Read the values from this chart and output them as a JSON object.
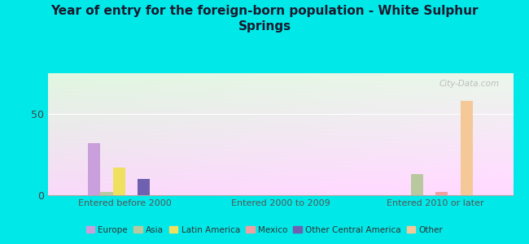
{
  "title": "Year of entry for the foreign-born population - White Sulphur\nSprings",
  "categories": [
    "Entered before 2000",
    "Entered 2000 to 2009",
    "Entered 2010 or later"
  ],
  "series": {
    "Europe": [
      32,
      0,
      0
    ],
    "Asia": [
      2,
      0,
      13
    ],
    "Latin America": [
      17,
      0,
      0
    ],
    "Mexico": [
      0,
      0,
      2
    ],
    "Other Central America": [
      10,
      0,
      0
    ],
    "Other": [
      0,
      0,
      58
    ]
  },
  "colors": {
    "Europe": "#c9a0dc",
    "Asia": "#b8c9a0",
    "Latin America": "#f0e060",
    "Mexico": "#f0a0a0",
    "Other Central America": "#7060b0",
    "Other": "#f5c898"
  },
  "ylim": [
    0,
    75
  ],
  "yticks": [
    0,
    50
  ],
  "background_color": "#00e8e8",
  "watermark": "City-Data.com"
}
